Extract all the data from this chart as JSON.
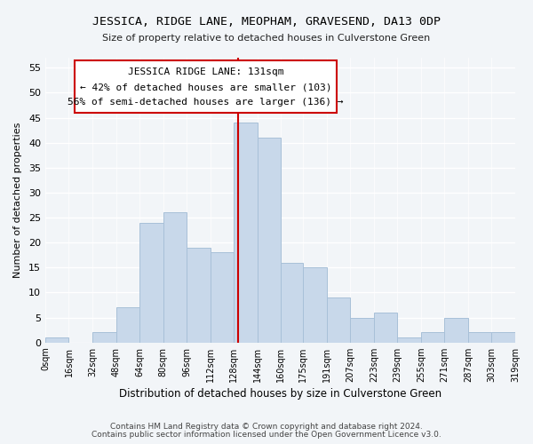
{
  "title": "JESSICA, RIDGE LANE, MEOPHAM, GRAVESEND, DA13 0DP",
  "subtitle": "Size of property relative to detached houses in Culverstone Green",
  "xlabel": "Distribution of detached houses by size in Culverstone Green",
  "ylabel": "Number of detached properties",
  "bar_color": "#c8d8ea",
  "bar_edge_color": "#a8c0d8",
  "bin_edges": [
    0,
    16,
    32,
    48,
    64,
    80,
    96,
    112,
    128,
    144,
    160,
    175,
    191,
    207,
    223,
    239,
    255,
    271,
    287,
    303,
    319
  ],
  "bar_heights": [
    1,
    0,
    2,
    7,
    24,
    26,
    19,
    18,
    44,
    41,
    16,
    15,
    9,
    5,
    6,
    1,
    2,
    5,
    2,
    2
  ],
  "tick_labels": [
    "0sqm",
    "16sqm",
    "32sqm",
    "48sqm",
    "64sqm",
    "80sqm",
    "96sqm",
    "112sqm",
    "128sqm",
    "144sqm",
    "160sqm",
    "175sqm",
    "191sqm",
    "207sqm",
    "223sqm",
    "239sqm",
    "255sqm",
    "271sqm",
    "287sqm",
    "303sqm",
    "319sqm"
  ],
  "vline_x": 131,
  "vline_color": "#cc0000",
  "annotation_title": "JESSICA RIDGE LANE: 131sqm",
  "annotation_line1": "← 42% of detached houses are smaller (103)",
  "annotation_line2": "56% of semi-detached houses are larger (136) →",
  "annotation_box_color": "#ffffff",
  "annotation_box_edge": "#cc0000",
  "ylim": [
    0,
    57
  ],
  "yticks": [
    0,
    5,
    10,
    15,
    20,
    25,
    30,
    35,
    40,
    45,
    50,
    55
  ],
  "footer1": "Contains HM Land Registry data © Crown copyright and database right 2024.",
  "footer2": "Contains public sector information licensed under the Open Government Licence v3.0.",
  "bg_color": "#f2f5f8"
}
